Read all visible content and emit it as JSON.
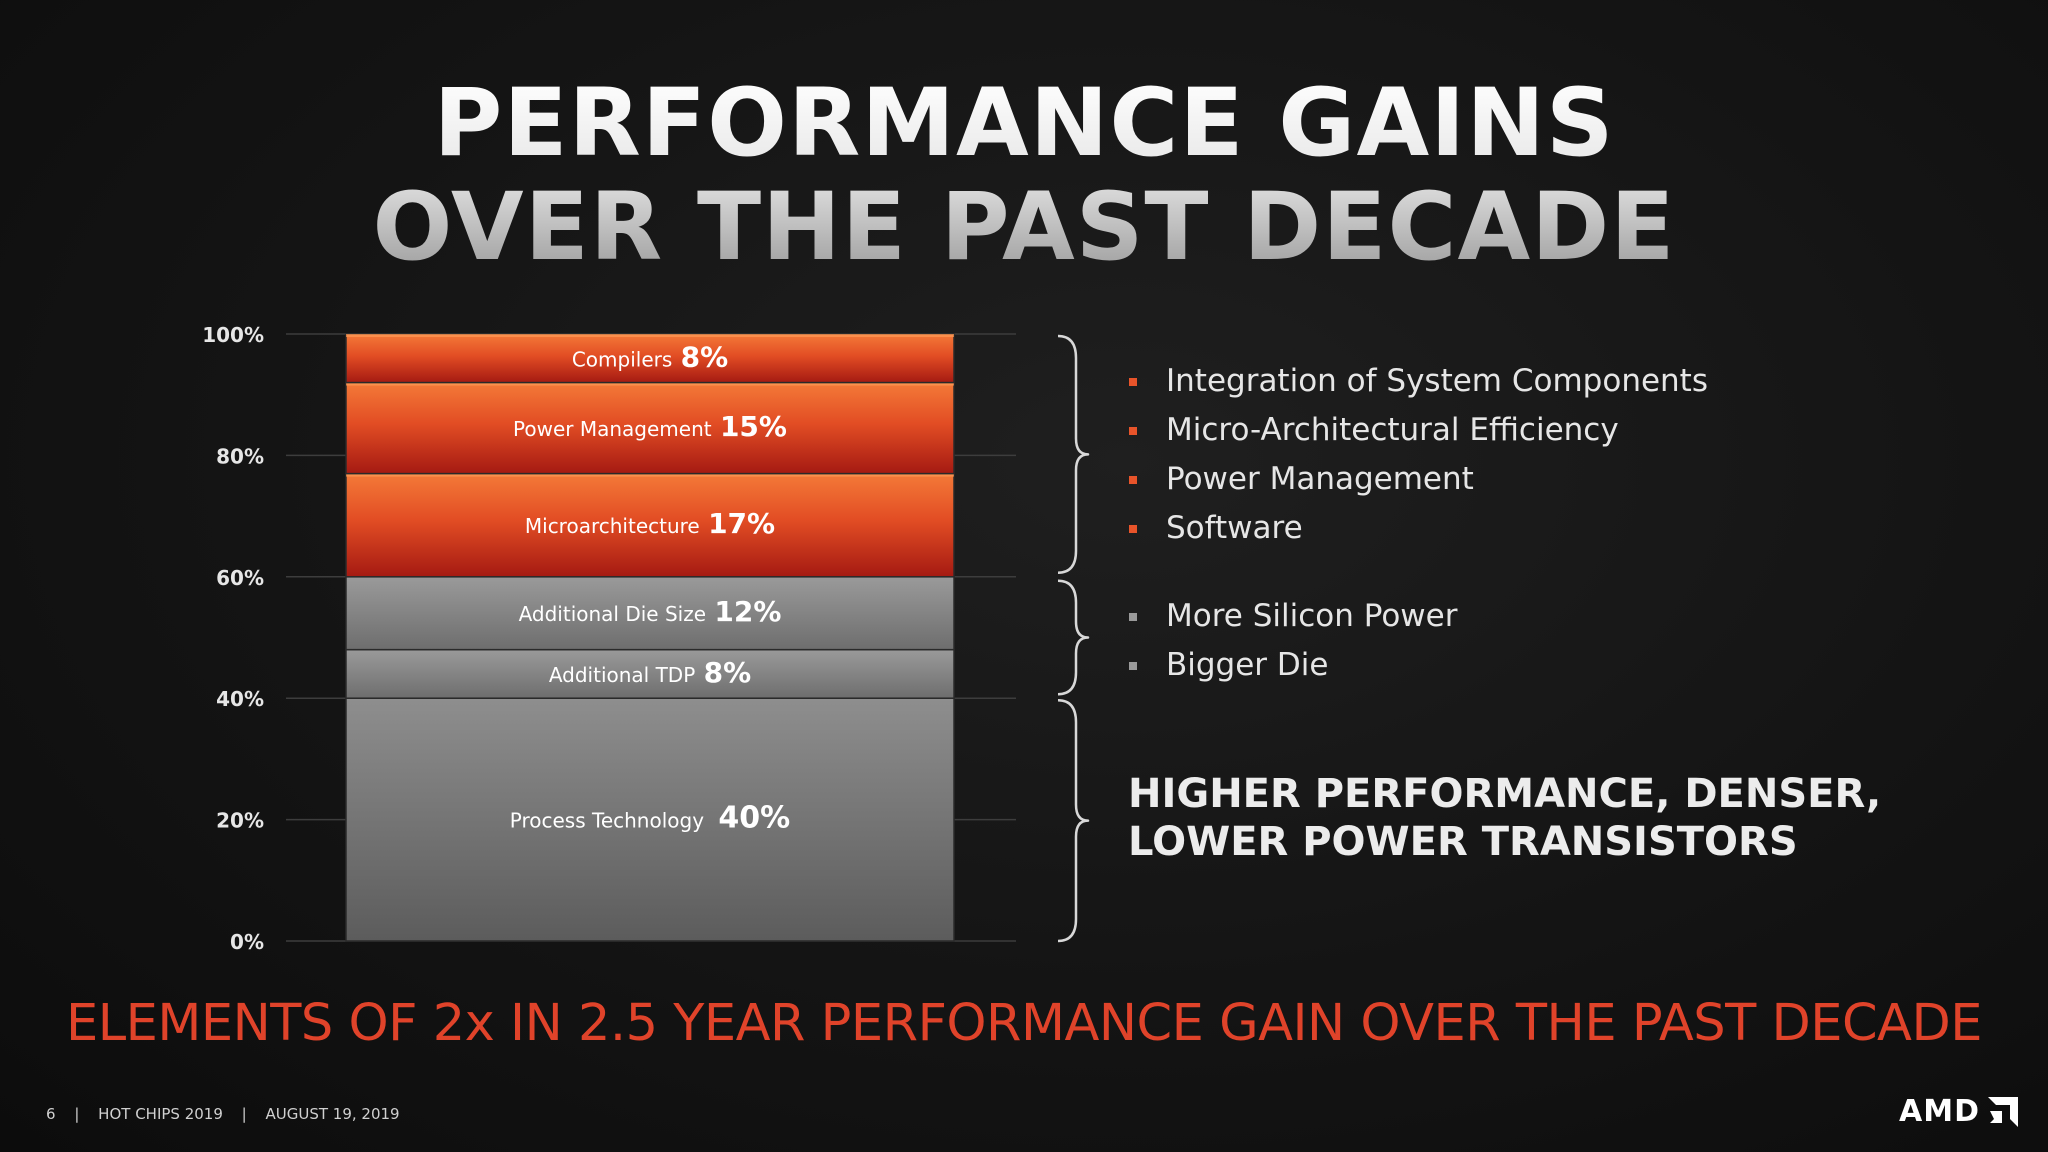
{
  "title": {
    "line1": "PERFORMANCE GAINS",
    "line2": "OVER THE PAST DECADE"
  },
  "chart_data": {
    "type": "bar",
    "stacked": true,
    "ylim": [
      0,
      100
    ],
    "yticks": [
      "0%",
      "20%",
      "40%",
      "60%",
      "80%",
      "100%"
    ],
    "grid": true,
    "segments": [
      {
        "label": "Process Technology",
        "value_label": "40%",
        "value": 40,
        "color": "#808080"
      },
      {
        "label": "Additional TDP",
        "value_label": "8%",
        "value": 8,
        "color": "#8a8a8a"
      },
      {
        "label": "Additional Die Size",
        "value_label": "12%",
        "value": 12,
        "color": "#8a8a8a"
      },
      {
        "label": "Microarchitecture",
        "value_label": "17%",
        "value": 17,
        "color": "#e8542a"
      },
      {
        "label": "Power Management",
        "value_label": "15%",
        "value": 15,
        "color": "#e8542a"
      },
      {
        "label": "Compilers",
        "value_label": "8%",
        "value": 8,
        "color": "#e8542a"
      }
    ]
  },
  "bullets_group1": [
    "Integration of System Components",
    "Micro-Architectural Efficiency",
    "Power Management",
    "Software"
  ],
  "bullets_group2": [
    "More Silicon Power",
    "Bigger Die"
  ],
  "highlight": {
    "line1": "HIGHER PERFORMANCE, DENSER,",
    "line2": "LOWER POWER TRANSISTORS"
  },
  "footer_title": "ELEMENTS OF 2x IN 2.5 YEAR PERFORMANCE GAIN OVER THE PAST DECADE",
  "footer": {
    "page": "6",
    "event": "HOT CHIPS 2019",
    "date": "AUGUST 19, 2019",
    "sep": "|"
  },
  "logo": "AMD",
  "colors": {
    "accent": "#e8542a",
    "accent_dark": "#a91c12",
    "gray": "#8a8a8a",
    "footer_title": "#e0432a"
  }
}
